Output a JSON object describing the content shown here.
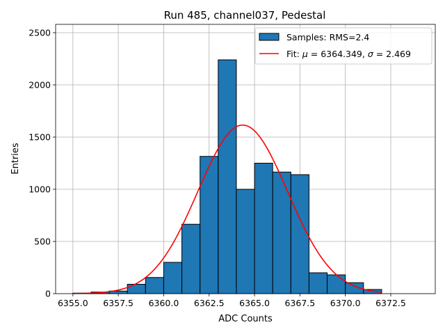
{
  "chart_data": {
    "type": "bar",
    "title": "Run 485, channel037, Pedestal",
    "xlabel": "ADC Counts",
    "ylabel": "Entries",
    "xlim": [
      6354.05,
      6374.95
    ],
    "ylim": [
      0,
      2580
    ],
    "grid": true,
    "xticks": [
      6355.0,
      6357.5,
      6360.0,
      6362.5,
      6365.0,
      6367.5,
      6370.0,
      6372.5
    ],
    "xtick_labels": [
      "6355.0",
      "6357.5",
      "6360.0",
      "6362.5",
      "6365.0",
      "6367.5",
      "6370.0",
      "6372.5"
    ],
    "yticks": [
      0,
      500,
      1000,
      1500,
      2000,
      2500
    ],
    "ytick_labels": [
      "0",
      "500",
      "1000",
      "1500",
      "2000",
      "2500"
    ],
    "histogram": {
      "name": "Samples: RMS=2.4",
      "color": "#1f77b4",
      "edge_color": "#000000",
      "bin_edges": [
        6355,
        6356,
        6357,
        6358,
        6359,
        6360,
        6361,
        6362,
        6363,
        6364,
        6365,
        6366,
        6367,
        6368,
        6369,
        6370,
        6371,
        6372
      ],
      "counts": [
        5,
        15,
        25,
        90,
        155,
        300,
        665,
        1315,
        2240,
        1000,
        1250,
        1165,
        1140,
        200,
        180,
        105,
        40
      ]
    },
    "fit": {
      "name": "Fit: μ = 6364.349, σ = 2.469",
      "color": "#ff0000",
      "mu": 6364.349,
      "sigma": 2.469,
      "amplitude": 1615,
      "x_range": [
        6355,
        6372
      ]
    },
    "legend": {
      "position": "upper right",
      "entries": [
        {
          "label_text": "Samples: RMS=2.4"
        },
        {
          "label_prefix": "Fit: ",
          "mu_symbol": "μ",
          "mu_text": " = 6364.349, ",
          "sigma_symbol": "σ",
          "sigma_text": " = 2.469"
        }
      ]
    }
  }
}
